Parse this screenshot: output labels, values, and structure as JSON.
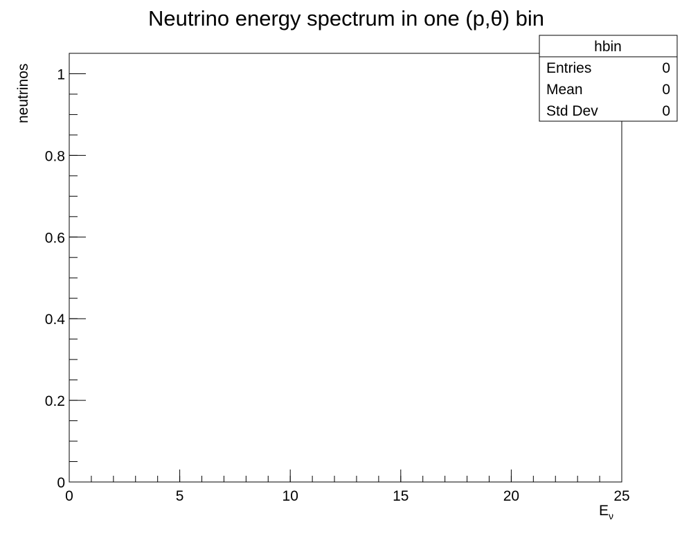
{
  "chart_data": {
    "type": "bar",
    "title": "Neutrino energy spectrum in one (p,θ) bin",
    "xlabel": "E",
    "xlabel_subscript": "ν",
    "ylabel": "neutrinos",
    "xlim": [
      0,
      25
    ],
    "ylim": [
      0,
      1.05
    ],
    "x_ticks": [
      0,
      5,
      10,
      15,
      20,
      25
    ],
    "y_ticks": [
      0,
      0.2,
      0.4,
      0.6,
      0.8,
      1
    ],
    "tick_labels": {
      "x": [
        "0",
        "5",
        "10",
        "15",
        "20",
        "25"
      ],
      "y": [
        "0",
        "0.2",
        "0.4",
        "0.6",
        "0.8",
        "1"
      ]
    },
    "x_minor_step": 1,
    "y_minor_step": 0.05,
    "grid": false,
    "series": [
      {
        "values": []
      }
    ]
  },
  "stats_box": {
    "title": "hbin",
    "rows": [
      {
        "label": "Entries",
        "value": "0"
      },
      {
        "label": "Mean",
        "value": "0"
      },
      {
        "label": "Std Dev",
        "value": "0"
      }
    ]
  }
}
